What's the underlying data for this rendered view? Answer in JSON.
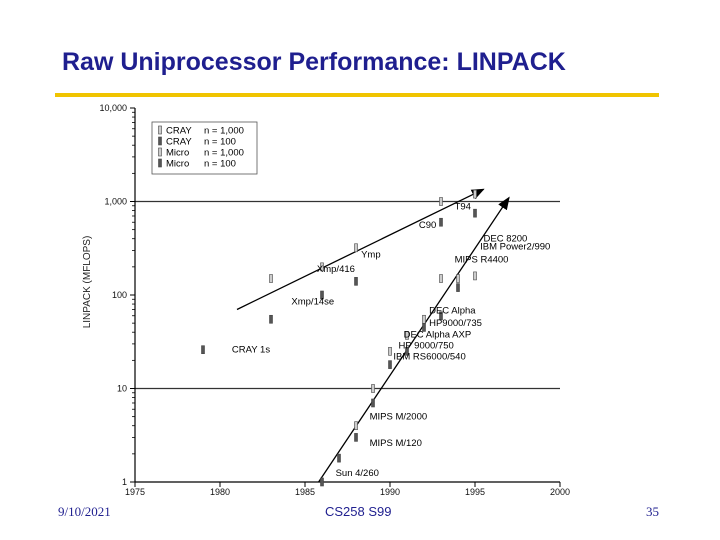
{
  "slide": {
    "title": "Raw Uniprocessor Performance: LINPACK",
    "footer_date": "9/10/2021",
    "footer_course": "CS258 S99",
    "page_number": "35",
    "title_color": "#1f1f8f",
    "accent_color": "#f0c400"
  },
  "chart_data": {
    "type": "scatter",
    "ylabel": "LINPACK (MFLOPS)",
    "xlim": [
      1975,
      2000
    ],
    "ylim": [
      1,
      10000
    ],
    "yscale": "log",
    "x_ticks": [
      "1975",
      "1980",
      "1985",
      "1990",
      "1995",
      "2000"
    ],
    "y_ticks": [
      {
        "value": 1,
        "label": "1"
      },
      {
        "value": 10,
        "label": "10"
      },
      {
        "value": 100,
        "label": "100"
      },
      {
        "value": 1000,
        "label": "1,000"
      },
      {
        "value": 10000,
        "label": "10,000"
      }
    ],
    "gridlines_y": [
      10,
      1000
    ],
    "legend": {
      "placement": "top-left",
      "entries": [
        {
          "label": "CRAY",
          "n": "n = 1,000"
        },
        {
          "label": "CRAY",
          "n": "n = 100"
        },
        {
          "label": "Micro",
          "n": "n = 1,000"
        },
        {
          "label": "Micro",
          "n": "n = 100"
        }
      ]
    },
    "series": [
      {
        "name": "CRAY n = 1,000",
        "marker": "light",
        "points": [
          {
            "x": 1983,
            "y": 150
          },
          {
            "x": 1986,
            "y": 200
          },
          {
            "x": 1988,
            "y": 320
          },
          {
            "x": 1993,
            "y": 1000
          },
          {
            "x": 1995,
            "y": 1200
          }
        ]
      },
      {
        "name": "CRAY n = 100",
        "marker": "dark",
        "points": [
          {
            "x": 1979,
            "y": 26
          },
          {
            "x": 1983,
            "y": 55
          },
          {
            "x": 1986,
            "y": 100
          },
          {
            "x": 1988,
            "y": 140
          },
          {
            "x": 1993,
            "y": 600
          },
          {
            "x": 1995,
            "y": 750
          }
        ]
      },
      {
        "name": "Micro n = 1,000",
        "marker": "light",
        "points": [
          {
            "x": 1988,
            "y": 4
          },
          {
            "x": 1989,
            "y": 10
          },
          {
            "x": 1990,
            "y": 25
          },
          {
            "x": 1991,
            "y": 37
          },
          {
            "x": 1992,
            "y": 55
          },
          {
            "x": 1993,
            "y": 150
          },
          {
            "x": 1994,
            "y": 150
          },
          {
            "x": 1995,
            "y": 160
          }
        ]
      },
      {
        "name": "Micro n = 100",
        "marker": "dark",
        "points": [
          {
            "x": 1986,
            "y": 1
          },
          {
            "x": 1987,
            "y": 1.8
          },
          {
            "x": 1988,
            "y": 3
          },
          {
            "x": 1989,
            "y": 7
          },
          {
            "x": 1990,
            "y": 18
          },
          {
            "x": 1991,
            "y": 25
          },
          {
            "x": 1992,
            "y": 45
          },
          {
            "x": 1993,
            "y": 60
          },
          {
            "x": 1994,
            "y": 120
          }
        ]
      }
    ],
    "annotations": [
      {
        "text": "T94",
        "x": 1993.8,
        "y": 880
      },
      {
        "text": "C90",
        "x": 1991.7,
        "y": 560
      },
      {
        "text": "DEC 8200",
        "x": 1995.5,
        "y": 400
      },
      {
        "text": "Ymp",
        "x": 1988.3,
        "y": 270
      },
      {
        "text": "Xmp/416",
        "x": 1985.7,
        "y": 190
      },
      {
        "text": "IBM Power2/990",
        "x": 1995.3,
        "y": 330
      },
      {
        "text": "MIPS R4400",
        "x": 1993.8,
        "y": 240
      },
      {
        "text": "Xmp/14se",
        "x": 1984.2,
        "y": 85
      },
      {
        "text": "DEC Alpha",
        "x": 1992.3,
        "y": 68
      },
      {
        "text": "HP9000/735",
        "x": 1992.3,
        "y": 50
      },
      {
        "text": "DEC Alpha AXP",
        "x": 1990.8,
        "y": 38
      },
      {
        "text": "CRAY 1s",
        "x": 1980.7,
        "y": 26
      },
      {
        "text": "HP 9000/750",
        "x": 1990.5,
        "y": 29
      },
      {
        "text": "IBM RS6000/540",
        "x": 1990.2,
        "y": 22
      },
      {
        "text": "MIPS M/2000",
        "x": 1988.8,
        "y": 5
      },
      {
        "text": "MIPS M/120",
        "x": 1988.8,
        "y": 2.6
      },
      {
        "text": "Sun 4/260",
        "x": 1986.8,
        "y": 1.25
      }
    ],
    "trend_lines": [
      {
        "name": "vector",
        "from": {
          "x": 1981,
          "y": 70
        },
        "to": {
          "x": 1995.5,
          "y": 1350
        }
      },
      {
        "name": "micro",
        "from": {
          "x": 1985.8,
          "y": 1
        },
        "to": {
          "x": 1997,
          "y": 1100
        }
      }
    ]
  }
}
